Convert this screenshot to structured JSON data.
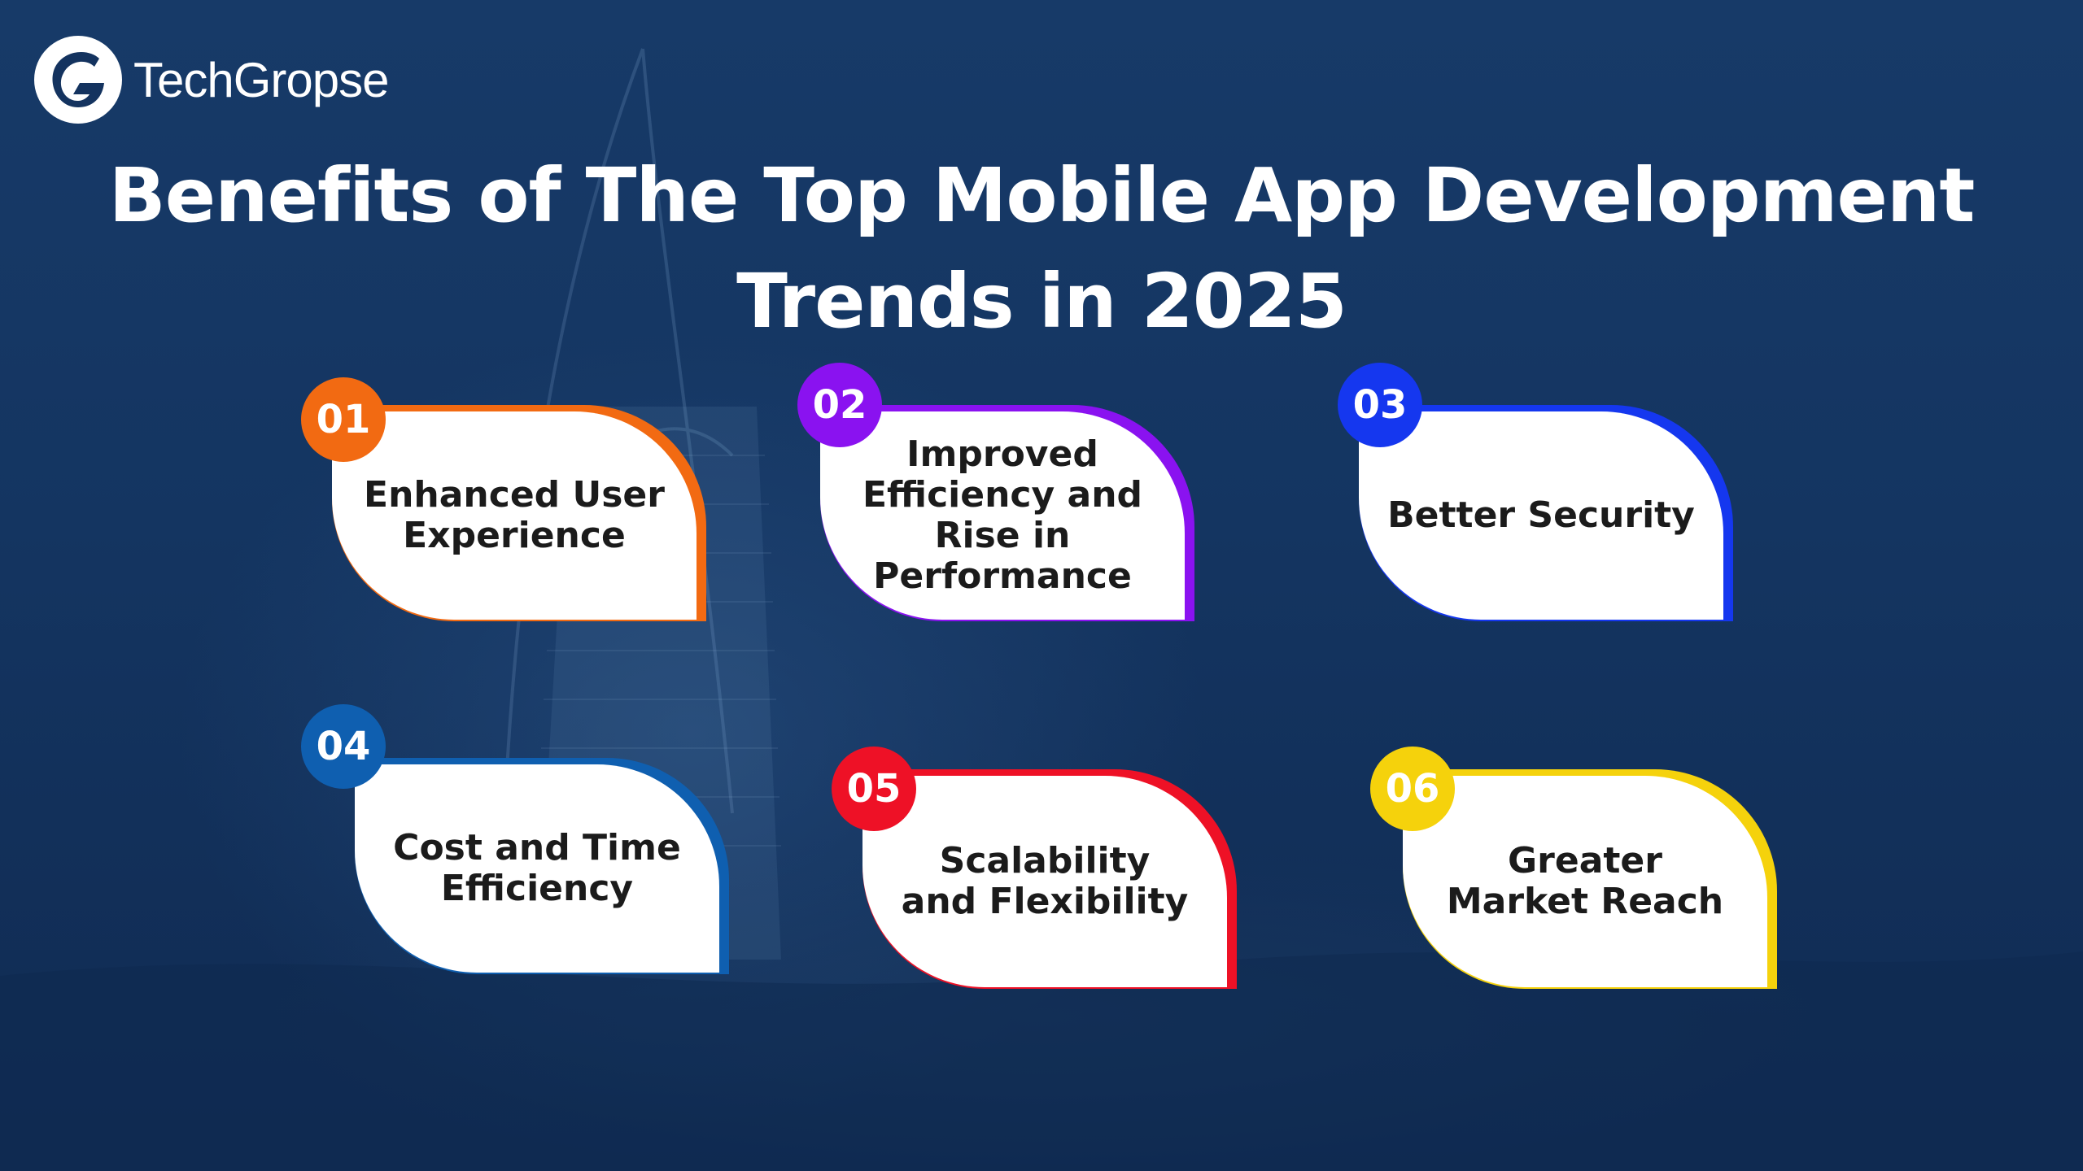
{
  "brand": {
    "name": "TechGropse",
    "logo_letter": "G"
  },
  "title_lines": [
    "Benefits of The Top Mobile App Development",
    "Trends in 2025"
  ],
  "cards": [
    {
      "number": "01",
      "label_lines": [
        "Enhanced User",
        "Experience"
      ],
      "color": "#f26a12"
    },
    {
      "number": "02",
      "label_lines": [
        "Improved",
        "Efficiency and",
        "Rise in",
        "Performance"
      ],
      "color": "#8a12f0"
    },
    {
      "number": "03",
      "label_lines": [
        "Better Security"
      ],
      "color": "#1537ef"
    },
    {
      "number": "04",
      "label_lines": [
        "Cost and Time",
        "Efficiency"
      ],
      "color": "#0f5fb0"
    },
    {
      "number": "05",
      "label_lines": [
        "Scalability",
        "and Flexibility"
      ],
      "color": "#ee1126"
    },
    {
      "number": "06",
      "label_lines": [
        "Greater",
        "Market Reach"
      ],
      "color": "#f5d20c"
    }
  ]
}
